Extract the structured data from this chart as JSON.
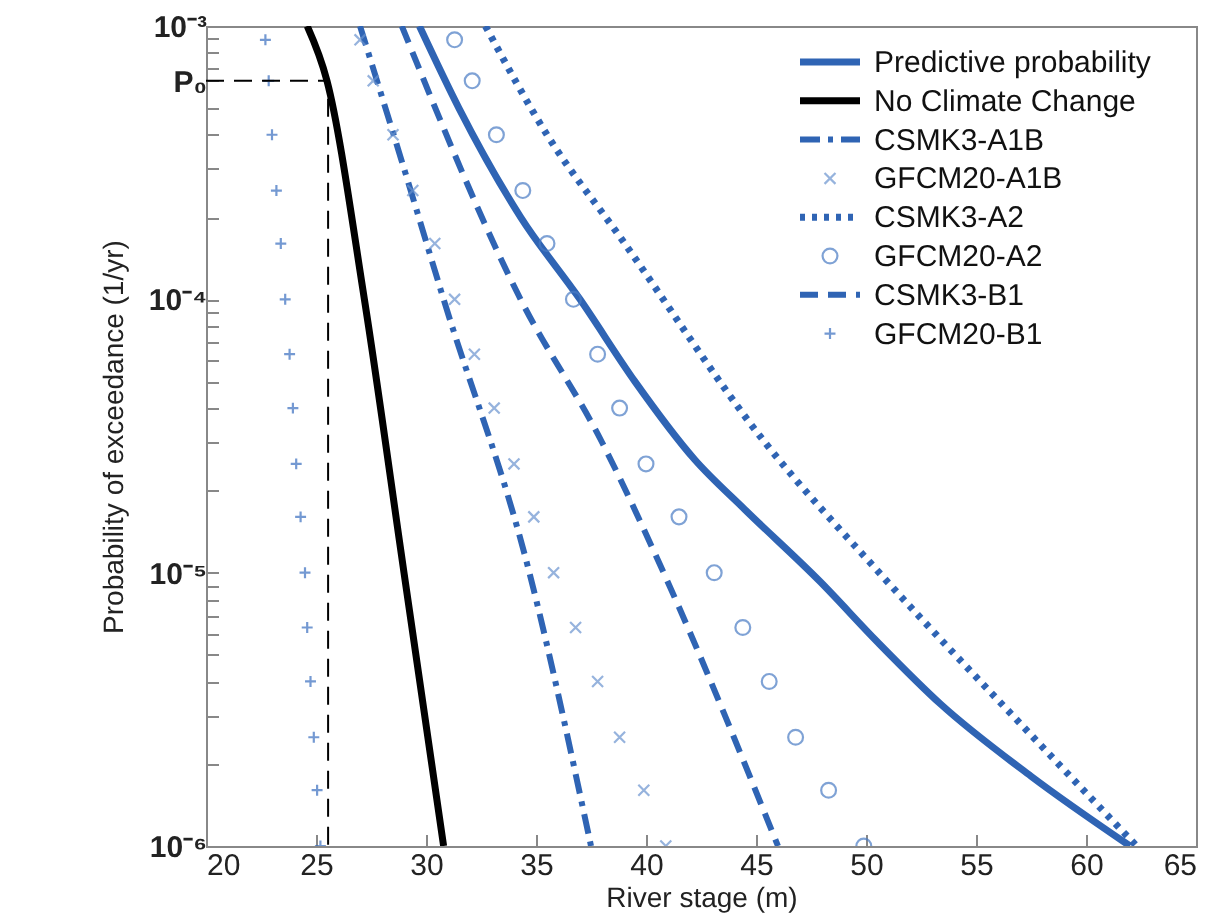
{
  "chart_data": {
    "type": "line",
    "xlabel": "River stage (m)",
    "ylabel": "Probability of exceedance (1/yr)",
    "log": "y",
    "legend": "top right",
    "xlim": [
      20,
      65
    ],
    "xticks": [
      20,
      25,
      30,
      35,
      40,
      45,
      50,
      55,
      60,
      65
    ],
    "ylim": [
      1e-06,
      0.001
    ],
    "yticks": [
      {
        "value": 1e-06,
        "label": "10⁻⁶"
      },
      {
        "value": 2e-06,
        "label": null
      },
      {
        "value": 3e-06,
        "label": null
      },
      {
        "value": 4e-06,
        "label": null
      },
      {
        "value": 5e-06,
        "label": null
      },
      {
        "value": 6e-06,
        "label": null
      },
      {
        "value": 7e-06,
        "label": null
      },
      {
        "value": 8e-06,
        "label": null
      },
      {
        "value": 9e-06,
        "label": null
      },
      {
        "value": 1e-05,
        "label": "10⁻⁵"
      },
      {
        "value": 2e-05,
        "label": null
      },
      {
        "value": 3e-05,
        "label": null
      },
      {
        "value": 4e-05,
        "label": null
      },
      {
        "value": 5e-05,
        "label": null
      },
      {
        "value": 6e-05,
        "label": null
      },
      {
        "value": 7e-05,
        "label": null
      },
      {
        "value": 8e-05,
        "label": null
      },
      {
        "value": 9e-05,
        "label": null
      },
      {
        "value": 0.0001,
        "label": "10⁻⁴"
      },
      {
        "value": 0.0002,
        "label": null
      },
      {
        "value": 0.0003,
        "label": null
      },
      {
        "value": 0.0004,
        "label": null
      },
      {
        "value": 0.0005,
        "label": null
      },
      {
        "value": 0.00063,
        "label": "P₀"
      },
      {
        "value": 0.0007,
        "label": null
      },
      {
        "value": 0.0008,
        "label": null
      },
      {
        "value": 0.0009,
        "label": null
      },
      {
        "value": 0.001,
        "label": "10⁻³"
      }
    ],
    "series": [
      {
        "name": "Predictive probability",
        "type": "line",
        "line_style": "solid",
        "color": "#2f64b4",
        "x": [
          29.7,
          31.5,
          34.3,
          37,
          39.5,
          42.2,
          44.5,
          47.9,
          50.5,
          53.4,
          57.5,
          62
        ],
        "values": [
          0.001,
          0.0005,
          0.0002,
          0.0001,
          5e-05,
          2.6e-05,
          1.7e-05,
          9.3e-06,
          5.6e-06,
          3.3e-06,
          1.8e-06,
          1e-06
        ]
      },
      {
        "name": "No Climate Change",
        "type": "line",
        "line_style": "solid",
        "color": "#000000",
        "x": [
          24.6,
          25.5,
          27.2,
          29,
          30.8
        ],
        "values": [
          0.001,
          0.00063,
          0.0001,
          1e-05,
          1e-06
        ]
      },
      {
        "name": "CSMK3-A1B",
        "type": "line",
        "line_style": "dashdot",
        "color": "#2f64b4",
        "x": [
          27,
          28.9,
          30.8,
          34.7,
          37.5
        ],
        "values": [
          0.001,
          0.00032,
          0.0001,
          1e-05,
          1e-06
        ]
      },
      {
        "name": "GFCM20-A1B",
        "type": "scatter",
        "marker": "cross",
        "color": "#6a93cf",
        "x": [
          27,
          27.6,
          28.5,
          29.4,
          30.4,
          31.3,
          32.2,
          33.1,
          34,
          34.9,
          35.8,
          36.8,
          37.8,
          38.8,
          39.9,
          40.9
        ],
        "values": [
          0.00089,
          0.00063,
          0.0004,
          0.00025,
          0.00016,
          0.0001,
          6.3e-05,
          4e-05,
          2.5e-05,
          1.6e-05,
          1e-05,
          6.3e-06,
          4e-06,
          2.5e-06,
          1.6e-06,
          1e-06
        ]
      },
      {
        "name": "CSMK3-A2",
        "type": "line",
        "line_style": "dotted",
        "color": "#2f64b4",
        "x": [
          32.7,
          35.5,
          38.8,
          45.4,
          50.6,
          57.6,
          62.3
        ],
        "values": [
          0.001,
          0.0004,
          0.00017,
          3e-05,
          1e-05,
          2.5e-06,
          1e-06
        ]
      },
      {
        "name": "GFCM20-A2",
        "type": "scatter",
        "marker": "circle",
        "color": "#4a7cc4",
        "x": [
          31.3,
          32.1,
          33.2,
          34.4,
          35.5,
          36.7,
          37.8,
          38.8,
          40,
          41.5,
          43.1,
          44.4,
          45.6,
          46.8,
          48.3,
          49.9
        ],
        "values": [
          0.00089,
          0.00063,
          0.0004,
          0.00025,
          0.00016,
          0.0001,
          6.3e-05,
          4e-05,
          2.5e-05,
          1.6e-05,
          1e-05,
          6.3e-06,
          4e-06,
          2.5e-06,
          1.6e-06,
          1e-06
        ]
      },
      {
        "name": "CSMK3-B1",
        "type": "line",
        "line_style": "dashed",
        "color": "#2f64b4",
        "x": [
          28.9,
          34.3,
          38,
          40.8,
          46
        ],
        "values": [
          0.001,
          0.0001,
          3e-05,
          1e-05,
          1e-06
        ]
      },
      {
        "name": "GFCM20-B1",
        "type": "scatter",
        "marker": "plus",
        "color": "#3a6fc0",
        "x": [
          22.7,
          22.85,
          23,
          23.2,
          23.4,
          23.6,
          23.8,
          23.95,
          24.1,
          24.3,
          24.5,
          24.6,
          24.75,
          24.9,
          25.05,
          25.2
        ],
        "values": [
          0.00089,
          0.00063,
          0.0004,
          0.00025,
          0.00016,
          0.0001,
          6.3e-05,
          4e-05,
          2.5e-05,
          1.6e-05,
          1e-05,
          6.3e-06,
          4e-06,
          2.5e-06,
          1.6e-06,
          1e-06
        ]
      },
      {
        "type": "line",
        "line_style": "dashed",
        "color": "#000000",
        "x": [
          20,
          25.55,
          25.55
        ],
        "values": [
          0.00063,
          0.00063,
          1e-06
        ]
      }
    ]
  }
}
